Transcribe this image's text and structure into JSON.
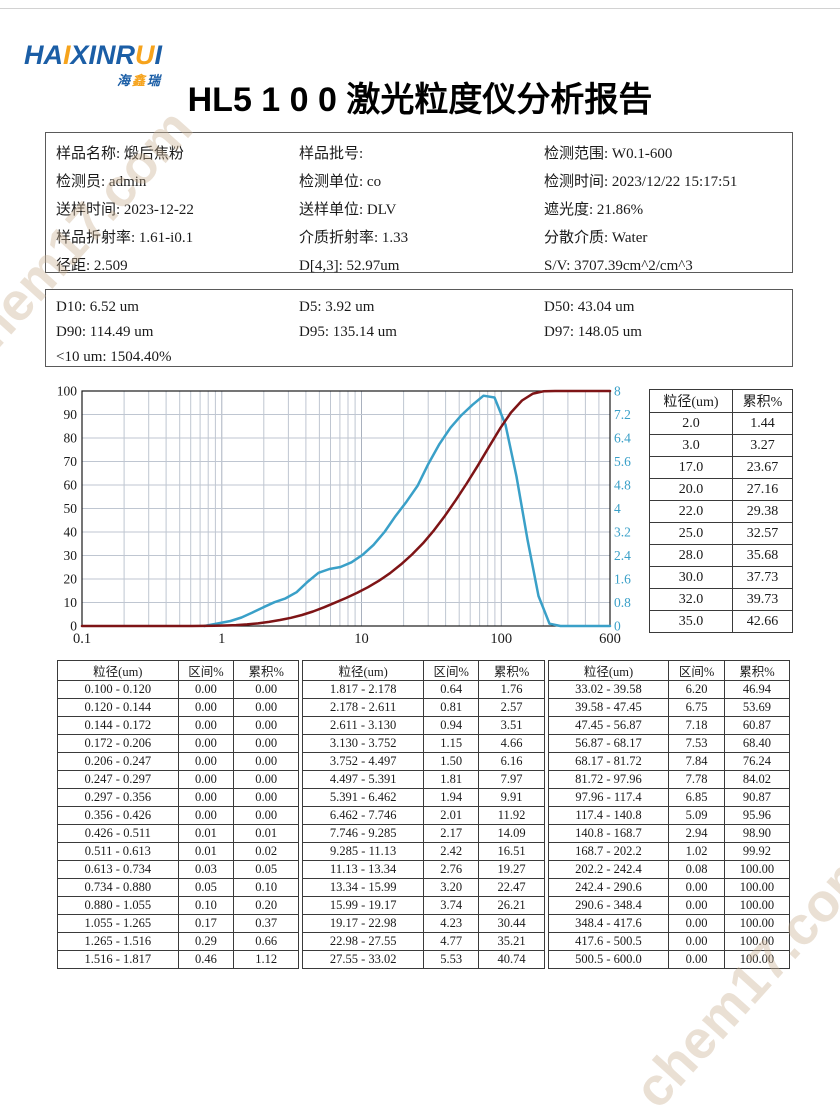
{
  "watermark": "chem17.com",
  "logo": {
    "text": "HAIXINRUI",
    "highlight": [
      2,
      7
    ],
    "sub": "海鑫瑞",
    "sub_highlight": [
      1
    ],
    "blue": "#1b5ea6",
    "orange": "#f6a31c"
  },
  "title": "HL5 1 0 0 激光粒度仪分析报告",
  "info": {
    "columns": [
      [
        {
          "label": "样品名称",
          "value": "煅后焦粉"
        },
        {
          "label": "检测员",
          "value": "admin"
        },
        {
          "label": "送样时间",
          "value": "2023-12-22"
        },
        {
          "label": "样品折射率",
          "value": "1.61-i0.1"
        },
        {
          "label": "径距",
          "value": "2.509"
        }
      ],
      [
        {
          "label": "样品批号",
          "value": ""
        },
        {
          "label": "检测单位",
          "value": "co"
        },
        {
          "label": "送样单位",
          "value": "DLV"
        },
        {
          "label": "介质折射率",
          "value": "1.33"
        },
        {
          "label": "D[4,3]",
          "value": "52.97um"
        }
      ],
      [
        {
          "label": "检测范围",
          "value": "W0.1-600"
        },
        {
          "label": "检测时间",
          "value": "2023/12/22 15:17:51"
        },
        {
          "label": "遮光度",
          "value": "21.86%"
        },
        {
          "label": "分散介质",
          "value": "Water"
        },
        {
          "label": "S/V",
          "value": "3707.39cm^2/cm^3"
        }
      ]
    ]
  },
  "dvalues": {
    "rows": [
      [
        {
          "label": "D10",
          "value": "6.52 um"
        },
        {
          "label": "D5",
          "value": "3.92 um"
        },
        {
          "label": "D50",
          "value": "43.04 um"
        }
      ],
      [
        {
          "label": "D90",
          "value": "114.49 um"
        },
        {
          "label": "D95",
          "value": "135.14 um"
        },
        {
          "label": "D97",
          "value": "148.05 um"
        }
      ],
      [
        {
          "label": "<10 um",
          "value": " 1504.40%"
        }
      ]
    ]
  },
  "chart_data": {
    "type": "line",
    "x_axis": {
      "scale": "log",
      "min": 0.1,
      "max": 600,
      "ticks": [
        0.1,
        1,
        10,
        100,
        600
      ],
      "tick_labels": [
        "0.1",
        "1",
        "10",
        "100",
        "600"
      ]
    },
    "y_left": {
      "label": "累积%",
      "min": 0,
      "max": 100,
      "step": 10,
      "color": "#1a1a1a"
    },
    "y_right": {
      "label": "区间%",
      "min": 0,
      "max": 8,
      "step": 0.8,
      "color": "#3aa0c8"
    },
    "grid": true,
    "series": [
      {
        "name": "区间%",
        "axis": "right",
        "color": "#3aa0c8",
        "points": [
          [
            0.75,
            0
          ],
          [
            0.963,
            0.1
          ],
          [
            1.155,
            0.17
          ],
          [
            1.385,
            0.29
          ],
          [
            1.66,
            0.46
          ],
          [
            1.99,
            0.64
          ],
          [
            2.385,
            0.81
          ],
          [
            2.86,
            0.94
          ],
          [
            3.43,
            1.15
          ],
          [
            4.11,
            1.5
          ],
          [
            4.92,
            1.81
          ],
          [
            5.9,
            1.94
          ],
          [
            7.08,
            2.01
          ],
          [
            8.48,
            2.17
          ],
          [
            10.17,
            2.42
          ],
          [
            12.19,
            2.76
          ],
          [
            14.61,
            3.2
          ],
          [
            17.51,
            3.74
          ],
          [
            20.99,
            4.23
          ],
          [
            25.16,
            4.77
          ],
          [
            30.16,
            5.53
          ],
          [
            36.15,
            6.2
          ],
          [
            43.34,
            6.75
          ],
          [
            51.95,
            7.18
          ],
          [
            62.26,
            7.53
          ],
          [
            74.64,
            7.84
          ],
          [
            89.47,
            7.78
          ],
          [
            107.2,
            6.85
          ],
          [
            128.6,
            5.09
          ],
          [
            154.1,
            2.94
          ],
          [
            184.7,
            1.02
          ],
          [
            221.4,
            0.08
          ],
          [
            265,
            0
          ],
          [
            600,
            0
          ]
        ]
      },
      {
        "name": "累积%",
        "axis": "left",
        "color": "#7e1416",
        "points": [
          [
            0.1,
            0
          ],
          [
            0.426,
            0
          ],
          [
            0.511,
            0.01
          ],
          [
            0.613,
            0.02
          ],
          [
            0.734,
            0.05
          ],
          [
            0.88,
            0.1
          ],
          [
            1.055,
            0.2
          ],
          [
            1.265,
            0.37
          ],
          [
            1.516,
            0.66
          ],
          [
            1.817,
            1.12
          ],
          [
            2.178,
            1.76
          ],
          [
            2.611,
            2.57
          ],
          [
            3.13,
            3.51
          ],
          [
            3.752,
            4.66
          ],
          [
            4.497,
            6.16
          ],
          [
            5.391,
            7.97
          ],
          [
            6.462,
            9.91
          ],
          [
            7.746,
            11.92
          ],
          [
            9.285,
            14.09
          ],
          [
            11.13,
            16.51
          ],
          [
            13.34,
            19.27
          ],
          [
            15.99,
            22.47
          ],
          [
            19.17,
            26.21
          ],
          [
            22.98,
            30.44
          ],
          [
            27.55,
            35.21
          ],
          [
            33.02,
            40.74
          ],
          [
            39.58,
            46.94
          ],
          [
            47.45,
            53.69
          ],
          [
            56.87,
            60.87
          ],
          [
            68.17,
            68.4
          ],
          [
            81.72,
            76.24
          ],
          [
            97.96,
            84.02
          ],
          [
            117.4,
            90.87
          ],
          [
            140.8,
            95.96
          ],
          [
            168.7,
            98.9
          ],
          [
            202.2,
            99.92
          ],
          [
            242.4,
            100
          ],
          [
            600,
            100
          ]
        ]
      }
    ]
  },
  "side_table": {
    "headers": [
      "粒径(um)",
      "累积%"
    ],
    "rows": [
      [
        "2.0",
        "1.44"
      ],
      [
        "3.0",
        "3.27"
      ],
      [
        "17.0",
        "23.67"
      ],
      [
        "20.0",
        "27.16"
      ],
      [
        "22.0",
        "29.38"
      ],
      [
        "25.0",
        "32.57"
      ],
      [
        "28.0",
        "35.68"
      ],
      [
        "30.0",
        "37.73"
      ],
      [
        "32.0",
        "39.73"
      ],
      [
        "35.0",
        "42.66"
      ]
    ]
  },
  "bin_table": {
    "headers": [
      "粒径(um)",
      "区间%",
      "累积%"
    ],
    "groups": [
      [
        [
          "0.100 - 0.120",
          "0.00",
          "0.00"
        ],
        [
          "0.120 - 0.144",
          "0.00",
          "0.00"
        ],
        [
          "0.144 - 0.172",
          "0.00",
          "0.00"
        ],
        [
          "0.172 - 0.206",
          "0.00",
          "0.00"
        ],
        [
          "0.206 - 0.247",
          "0.00",
          "0.00"
        ],
        [
          "0.247 - 0.297",
          "0.00",
          "0.00"
        ],
        [
          "0.297 - 0.356",
          "0.00",
          "0.00"
        ],
        [
          "0.356 - 0.426",
          "0.00",
          "0.00"
        ],
        [
          "0.426 - 0.511",
          "0.01",
          "0.01"
        ],
        [
          "0.511 - 0.613",
          "0.01",
          "0.02"
        ],
        [
          "0.613 - 0.734",
          "0.03",
          "0.05"
        ],
        [
          "0.734 - 0.880",
          "0.05",
          "0.10"
        ],
        [
          "0.880 - 1.055",
          "0.10",
          "0.20"
        ],
        [
          "1.055 - 1.265",
          "0.17",
          "0.37"
        ],
        [
          "1.265 - 1.516",
          "0.29",
          "0.66"
        ],
        [
          "1.516 - 1.817",
          "0.46",
          "1.12"
        ]
      ],
      [
        [
          "1.817 - 2.178",
          "0.64",
          "1.76"
        ],
        [
          "2.178 - 2.611",
          "0.81",
          "2.57"
        ],
        [
          "2.611 - 3.130",
          "0.94",
          "3.51"
        ],
        [
          "3.130 - 3.752",
          "1.15",
          "4.66"
        ],
        [
          "3.752 - 4.497",
          "1.50",
          "6.16"
        ],
        [
          "4.497 - 5.391",
          "1.81",
          "7.97"
        ],
        [
          "5.391 - 6.462",
          "1.94",
          "9.91"
        ],
        [
          "6.462 - 7.746",
          "2.01",
          "11.92"
        ],
        [
          "7.746 - 9.285",
          "2.17",
          "14.09"
        ],
        [
          "9.285 - 11.13",
          "2.42",
          "16.51"
        ],
        [
          "11.13 - 13.34",
          "2.76",
          "19.27"
        ],
        [
          "13.34 - 15.99",
          "3.20",
          "22.47"
        ],
        [
          "15.99 - 19.17",
          "3.74",
          "26.21"
        ],
        [
          "19.17 - 22.98",
          "4.23",
          "30.44"
        ],
        [
          "22.98 - 27.55",
          "4.77",
          "35.21"
        ],
        [
          "27.55 - 33.02",
          "5.53",
          "40.74"
        ]
      ],
      [
        [
          "33.02 - 39.58",
          "6.20",
          "46.94"
        ],
        [
          "39.58 - 47.45",
          "6.75",
          "53.69"
        ],
        [
          "47.45 - 56.87",
          "7.18",
          "60.87"
        ],
        [
          "56.87 - 68.17",
          "7.53",
          "68.40"
        ],
        [
          "68.17 - 81.72",
          "7.84",
          "76.24"
        ],
        [
          "81.72 - 97.96",
          "7.78",
          "84.02"
        ],
        [
          "97.96 - 117.4",
          "6.85",
          "90.87"
        ],
        [
          "117.4 - 140.8",
          "5.09",
          "95.96"
        ],
        [
          "140.8 - 168.7",
          "2.94",
          "98.90"
        ],
        [
          "168.7 - 202.2",
          "1.02",
          "99.92"
        ],
        [
          "202.2 - 242.4",
          "0.08",
          "100.00"
        ],
        [
          "242.4 - 290.6",
          "0.00",
          "100.00"
        ],
        [
          "290.6 - 348.4",
          "0.00",
          "100.00"
        ],
        [
          "348.4 - 417.6",
          "0.00",
          "100.00"
        ],
        [
          "417.6 - 500.5",
          "0.00",
          "100.00"
        ],
        [
          "500.5 - 600.0",
          "0.00",
          "100.00"
        ]
      ]
    ]
  }
}
